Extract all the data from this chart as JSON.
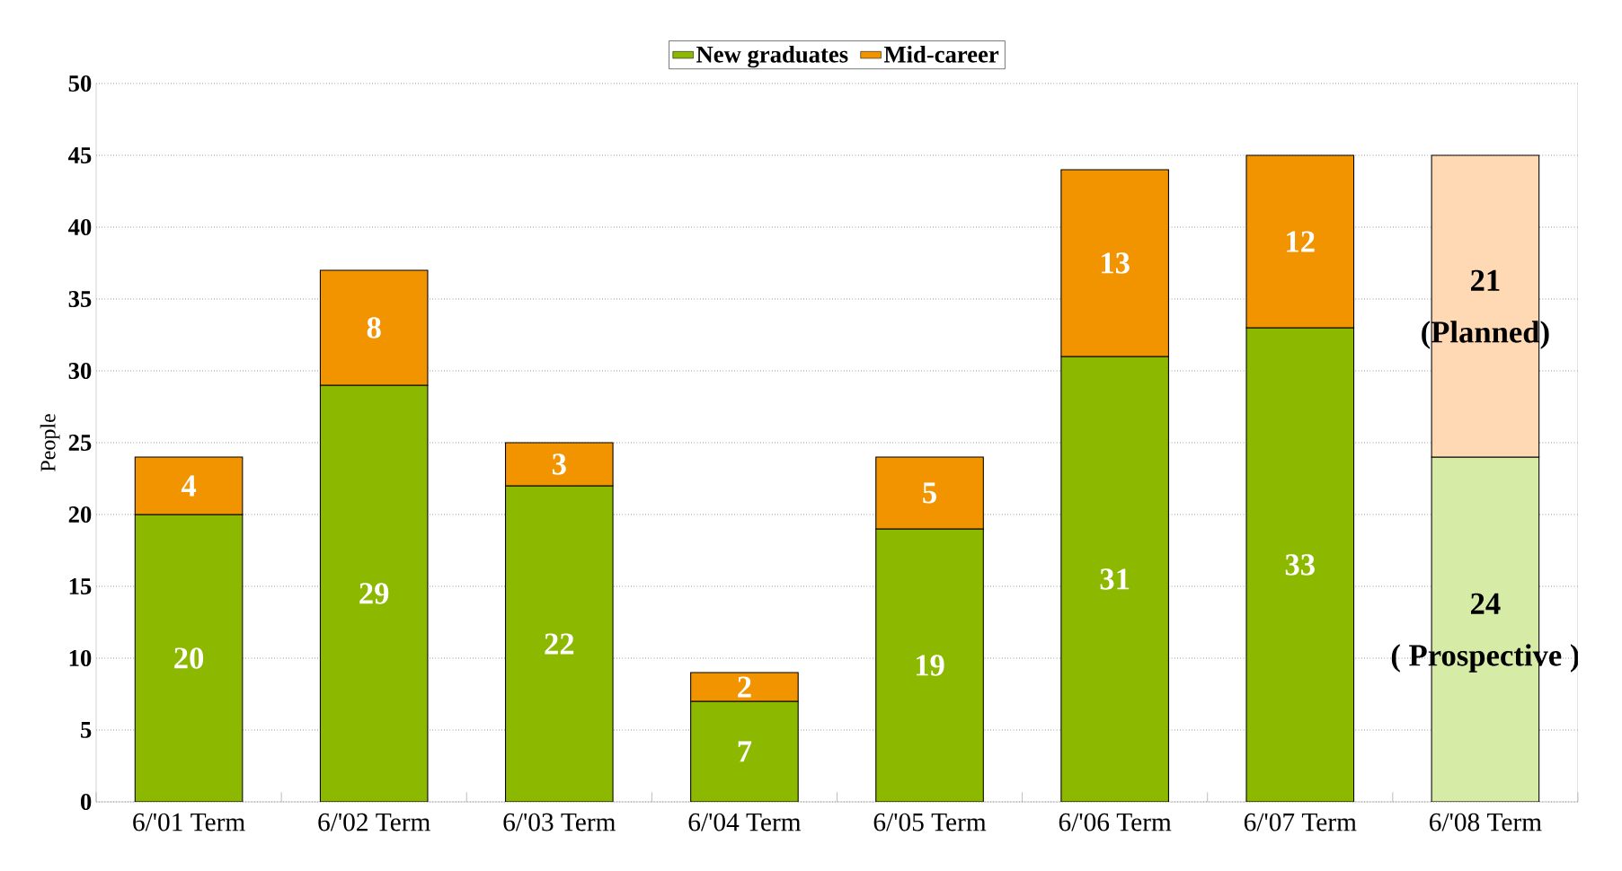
{
  "chart_data": {
    "type": "bar",
    "stacked": true,
    "ylabel": "People",
    "categories": [
      "6/'01 Term",
      "6/'02 Term",
      "6/'03 Term",
      "6/'04 Term",
      "6/'05 Term",
      "6/'06 Term",
      "6/'07 Term",
      "6/'08 Term"
    ],
    "series": [
      {
        "name": "New graduates",
        "color": "#8cb800",
        "colors": [
          "#8cb800",
          "#8cb800",
          "#8cb800",
          "#8cb800",
          "#8cb800",
          "#8cb800",
          "#8cb800",
          "#d6eca6"
        ],
        "values": [
          20,
          29,
          22,
          7,
          19,
          31,
          33,
          24
        ]
      },
      {
        "name": "Mid-career",
        "color": "#f29400",
        "colors": [
          "#f29400",
          "#f29400",
          "#f29400",
          "#f29400",
          "#f29400",
          "#f29400",
          "#f29400",
          "#ffd8b4"
        ],
        "values": [
          4,
          8,
          3,
          2,
          5,
          13,
          12,
          21
        ]
      }
    ],
    "ylim": [
      0,
      50
    ],
    "yticks": [
      0,
      5,
      10,
      15,
      20,
      25,
      30,
      35,
      40,
      45,
      50
    ],
    "grid": "y",
    "legend": "top",
    "data_labels": true,
    "annotations": [
      "(Planned)",
      "( Prospective )"
    ]
  }
}
